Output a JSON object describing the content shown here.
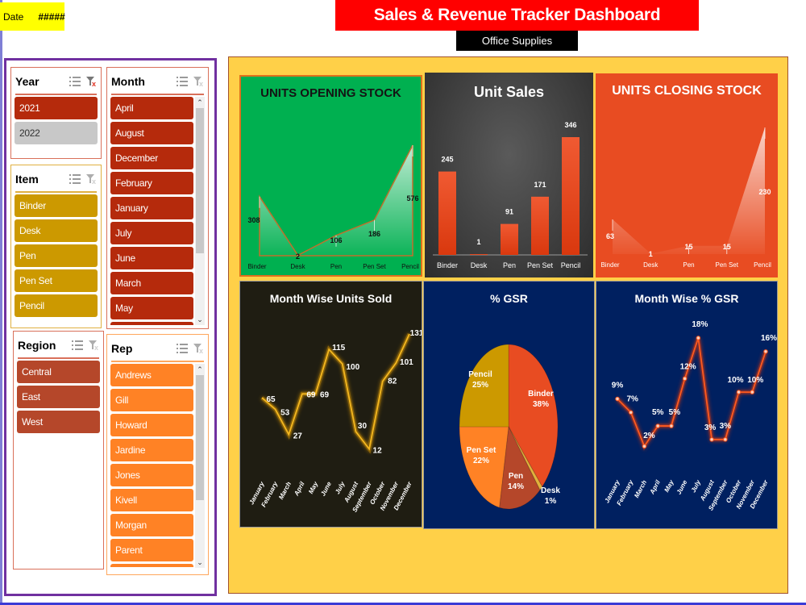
{
  "header": {
    "date_label": "Date",
    "date_value": "#####",
    "title": "Sales & Revenue Tracker Dashboard",
    "subtitle": "Office Supplies"
  },
  "slicers": {
    "year": {
      "title": "Year",
      "items": [
        "2021",
        "2022"
      ],
      "selected": [
        "2021"
      ]
    },
    "month": {
      "title": "Month",
      "items": [
        "April",
        "August",
        "December",
        "February",
        "January",
        "July",
        "June",
        "March",
        "May"
      ]
    },
    "item": {
      "title": "Item",
      "items": [
        "Binder",
        "Desk",
        "Pen",
        "Pen Set",
        "Pencil"
      ]
    },
    "region": {
      "title": "Region",
      "items": [
        "Central",
        "East",
        "West"
      ]
    },
    "rep": {
      "title": "Rep",
      "items": [
        "Andrews",
        "Gill",
        "Howard",
        "Jardine",
        "Jones",
        "Kivell",
        "Morgan",
        "Parent"
      ]
    }
  },
  "colors": {
    "title_red": "#ff0000",
    "year_selected": "#b52a0c",
    "year_unselected": "#c8c8c8",
    "month_item": "#b52a0c",
    "item_item": "#cc9900",
    "region_item": "#b5472a",
    "rep_item": "#ff8225",
    "dashboard_bg": "#ffd048",
    "opening_bg": "#00b050",
    "sales_bg": "#3a3a3a",
    "closing_bg": "#e84c22",
    "month_units_bg": "#1f1d12",
    "gsr_bg": "#002060"
  },
  "chart_data": [
    {
      "id": "opening_stock",
      "type": "area",
      "title": "UNITS OPENING STOCK",
      "categories": [
        "Binder",
        "Desk",
        "Pen",
        "Pen Set",
        "Pencil"
      ],
      "values": [
        308,
        2,
        106,
        186,
        576
      ],
      "labels": [
        "308",
        "2",
        "106",
        "186",
        "576"
      ],
      "grid": false,
      "legend": "none"
    },
    {
      "id": "unit_sales",
      "type": "bar",
      "title": "Unit Sales",
      "categories": [
        "Binder",
        "Desk",
        "Pen",
        "Pen Set",
        "Pencil"
      ],
      "values": [
        245,
        1,
        91,
        171,
        346
      ],
      "labels": [
        "245",
        "1",
        "91",
        "171",
        "346"
      ],
      "grid": false,
      "legend": "none"
    },
    {
      "id": "closing_stock",
      "type": "area",
      "title": "UNITS CLOSING STOCK",
      "categories": [
        "Binder",
        "Desk",
        "Pen",
        "Pen Set",
        "Pencil"
      ],
      "values": [
        63,
        1,
        15,
        15,
        230
      ],
      "labels": [
        "63",
        "1",
        "15",
        "15",
        "230"
      ],
      "grid": false,
      "legend": "none"
    },
    {
      "id": "month_units",
      "type": "line",
      "title": "Month Wise Units Sold",
      "categories": [
        "January",
        "February",
        "March",
        "April",
        "May",
        "June",
        "July",
        "August",
        "September",
        "October",
        "November",
        "December"
      ],
      "values": [
        65,
        53,
        27,
        69,
        69,
        115,
        100,
        30,
        12,
        82,
        101,
        131
      ],
      "labels": [
        "65",
        "53",
        "27",
        "69",
        "69",
        "115",
        "100",
        "30",
        "12",
        "82",
        "101",
        "131"
      ],
      "grid": false,
      "legend": "none"
    },
    {
      "id": "gsr_pie",
      "type": "pie",
      "title": "% GSR",
      "categories": [
        "Binder",
        "Desk",
        "Pen",
        "Pen Set",
        "Pencil"
      ],
      "values": [
        38,
        1,
        14,
        22,
        25
      ],
      "labels": [
        "38%",
        "1%",
        "14%",
        "22%",
        "25%"
      ],
      "slice_colors": [
        "#e84c22",
        "#e2b13c",
        "#b5472a",
        "#ff8225",
        "#cc9900"
      ],
      "legend": "none"
    },
    {
      "id": "month_gsr",
      "type": "line",
      "title": "Month Wise % GSR",
      "categories": [
        "January",
        "February",
        "March",
        "April",
        "May",
        "June",
        "July",
        "August",
        "September",
        "October",
        "November",
        "December"
      ],
      "values": [
        9,
        7,
        2,
        5,
        5,
        12,
        18,
        3,
        3,
        10,
        10,
        16
      ],
      "labels": [
        "9%",
        "7%",
        "2%",
        "5%",
        "5%",
        "12%",
        "18%",
        "3%",
        "3%",
        "10%",
        "10%",
        "16%"
      ],
      "grid": false,
      "legend": "none"
    }
  ]
}
